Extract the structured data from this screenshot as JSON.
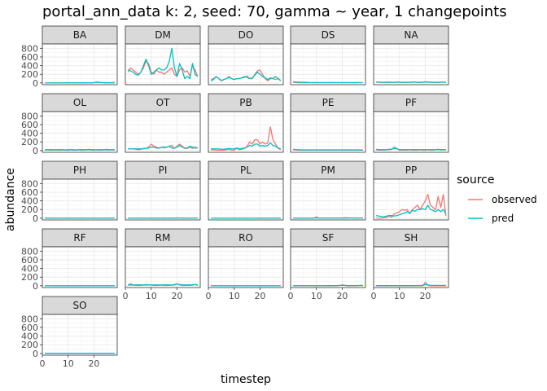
{
  "chart_data": {
    "type": "line",
    "title": "portal_ann_data k: 2, seed: 70, gamma ~ year, 1 changepoints",
    "xlabel": "timestep",
    "ylabel": "abundance",
    "xlim": [
      0,
      29
    ],
    "ylim": [
      -40,
      900
    ],
    "x_ticks": [
      0,
      10,
      20
    ],
    "y_ticks": [
      0,
      200,
      400,
      600,
      800
    ],
    "grid": true,
    "legend": {
      "title": "source",
      "position": "right",
      "entries": [
        {
          "label": "observed",
          "color": "#F8766D"
        },
        {
          "label": "pred",
          "color": "#00BFC4"
        }
      ]
    },
    "x": [
      1,
      2,
      3,
      4,
      5,
      6,
      7,
      8,
      9,
      10,
      11,
      12,
      13,
      14,
      15,
      16,
      17,
      18,
      19,
      20,
      21,
      22,
      23,
      24,
      25,
      26,
      27,
      28
    ],
    "panels": [
      {
        "name": "BA",
        "observed": [
          0,
          0,
          0,
          0,
          0,
          0,
          0,
          0,
          0,
          0,
          0,
          0,
          0,
          0,
          0,
          0,
          0,
          0,
          0,
          5,
          20,
          10,
          5,
          0,
          0,
          0,
          0,
          0
        ],
        "pred": [
          0,
          0,
          0,
          2,
          2,
          2,
          2,
          2,
          3,
          3,
          3,
          3,
          3,
          3,
          3,
          3,
          4,
          4,
          5,
          10,
          20,
          15,
          10,
          10,
          8,
          6,
          10,
          15
        ]
      },
      {
        "name": "DM",
        "observed": [
          250,
          350,
          300,
          250,
          200,
          250,
          350,
          500,
          450,
          250,
          200,
          300,
          250,
          250,
          200,
          250,
          300,
          350,
          200,
          150,
          300,
          350,
          250,
          280,
          150,
          400,
          300,
          150
        ],
        "pred": [
          300,
          280,
          250,
          200,
          180,
          250,
          400,
          550,
          400,
          200,
          250,
          300,
          350,
          300,
          300,
          350,
          500,
          800,
          350,
          150,
          450,
          300,
          100,
          150,
          100,
          450,
          200,
          150
        ]
      },
      {
        "name": "DO",
        "observed": [
          80,
          100,
          150,
          100,
          50,
          80,
          100,
          150,
          100,
          80,
          100,
          100,
          120,
          130,
          160,
          100,
          100,
          200,
          280,
          300,
          200,
          100,
          50,
          100,
          100,
          80,
          100,
          60
        ],
        "pred": [
          50,
          80,
          150,
          100,
          60,
          80,
          100,
          130,
          100,
          80,
          100,
          100,
          120,
          150,
          130,
          100,
          120,
          180,
          250,
          200,
          150,
          120,
          80,
          120,
          100,
          150,
          100,
          50
        ]
      },
      {
        "name": "DS",
        "observed": [
          20,
          10,
          5,
          5,
          5,
          5,
          5,
          5,
          5,
          5,
          5,
          5,
          5,
          5,
          5,
          5,
          5,
          5,
          5,
          5,
          5,
          5,
          5,
          5,
          5,
          5,
          5,
          5
        ],
        "pred": [
          30,
          20,
          20,
          15,
          15,
          15,
          10,
          10,
          10,
          10,
          10,
          10,
          10,
          10,
          10,
          10,
          10,
          10,
          10,
          10,
          10,
          10,
          10,
          10,
          10,
          10,
          10,
          10
        ]
      },
      {
        "name": "NA",
        "observed": [
          20,
          20,
          10,
          10,
          10,
          20,
          10,
          10,
          20,
          20,
          10,
          10,
          10,
          10,
          20,
          20,
          10,
          10,
          20,
          30,
          20,
          20,
          10,
          10,
          10,
          20,
          20,
          10
        ],
        "pred": [
          20,
          20,
          15,
          15,
          15,
          20,
          15,
          15,
          20,
          20,
          15,
          15,
          15,
          15,
          20,
          20,
          15,
          15,
          20,
          25,
          20,
          20,
          15,
          15,
          15,
          20,
          20,
          15
        ]
      },
      {
        "name": "OL",
        "observed": [
          10,
          20,
          10,
          10,
          20,
          10,
          10,
          20,
          10,
          10,
          20,
          10,
          10,
          20,
          10,
          10,
          20,
          30,
          10,
          10,
          20,
          10,
          10,
          20,
          30,
          10,
          20,
          10
        ],
        "pred": [
          20,
          20,
          20,
          20,
          15,
          20,
          20,
          20,
          15,
          20,
          20,
          20,
          15,
          20,
          20,
          20,
          15,
          20,
          20,
          20,
          15,
          20,
          20,
          20,
          15,
          20,
          20,
          20
        ]
      },
      {
        "name": "OT",
        "observed": [
          40,
          40,
          40,
          30,
          20,
          30,
          50,
          50,
          80,
          150,
          100,
          80,
          50,
          80,
          60,
          80,
          100,
          120,
          50,
          100,
          150,
          100,
          50,
          50,
          80,
          50,
          80,
          60
        ],
        "pred": [
          40,
          40,
          40,
          40,
          40,
          40,
          40,
          50,
          60,
          80,
          80,
          60,
          60,
          80,
          80,
          80,
          100,
          60,
          60,
          80,
          120,
          80,
          60,
          60,
          100,
          80,
          60,
          60
        ]
      },
      {
        "name": "PB",
        "observed": [
          20,
          20,
          10,
          10,
          10,
          10,
          20,
          30,
          10,
          10,
          50,
          20,
          30,
          50,
          100,
          200,
          150,
          250,
          250,
          150,
          200,
          150,
          180,
          550,
          250,
          150,
          50,
          20
        ],
        "pred": [
          40,
          40,
          40,
          40,
          30,
          30,
          40,
          50,
          40,
          40,
          60,
          40,
          50,
          60,
          80,
          120,
          100,
          150,
          150,
          100,
          120,
          100,
          120,
          180,
          120,
          100,
          60,
          40
        ]
      },
      {
        "name": "PE",
        "observed": [
          20,
          20,
          10,
          10,
          10,
          10,
          10,
          10,
          10,
          10,
          10,
          10,
          10,
          10,
          10,
          10,
          10,
          10,
          10,
          10,
          10,
          10,
          10,
          10,
          10,
          10,
          10,
          10
        ],
        "pred": [
          30,
          20,
          20,
          15,
          15,
          15,
          15,
          15,
          15,
          15,
          15,
          15,
          15,
          15,
          15,
          15,
          15,
          15,
          15,
          15,
          15,
          15,
          15,
          15,
          15,
          15,
          15,
          15
        ]
      },
      {
        "name": "PF",
        "observed": [
          20,
          10,
          10,
          10,
          20,
          20,
          30,
          80,
          50,
          10,
          10,
          10,
          10,
          20,
          10,
          10,
          10,
          20,
          10,
          10,
          20,
          10,
          10,
          20,
          30,
          10,
          20,
          10
        ],
        "pred": [
          30,
          20,
          20,
          20,
          20,
          30,
          30,
          50,
          40,
          20,
          20,
          20,
          20,
          20,
          20,
          20,
          20,
          20,
          20,
          20,
          20,
          20,
          20,
          20,
          25,
          20,
          20,
          20
        ]
      },
      {
        "name": "PH",
        "observed": [
          0,
          0,
          0,
          0,
          0,
          0,
          0,
          0,
          0,
          0,
          0,
          0,
          0,
          0,
          0,
          0,
          0,
          0,
          0,
          0,
          0,
          0,
          0,
          0,
          0,
          0,
          0,
          0
        ],
        "pred": [
          2,
          2,
          2,
          2,
          2,
          2,
          2,
          2,
          2,
          2,
          2,
          2,
          2,
          2,
          2,
          2,
          2,
          2,
          2,
          2,
          2,
          2,
          2,
          2,
          2,
          2,
          2,
          2
        ]
      },
      {
        "name": "PI",
        "observed": [
          0,
          0,
          0,
          0,
          0,
          0,
          0,
          0,
          0,
          0,
          0,
          0,
          0,
          0,
          0,
          0,
          0,
          0,
          0,
          10,
          0,
          0,
          0,
          0,
          0,
          0,
          0,
          0
        ],
        "pred": [
          2,
          2,
          2,
          2,
          2,
          2,
          2,
          2,
          2,
          2,
          2,
          2,
          2,
          2,
          2,
          2,
          2,
          2,
          2,
          5,
          5,
          2,
          2,
          2,
          2,
          2,
          2,
          2
        ]
      },
      {
        "name": "PL",
        "observed": [
          0,
          0,
          0,
          0,
          0,
          0,
          0,
          0,
          0,
          0,
          0,
          0,
          0,
          0,
          0,
          0,
          0,
          0,
          0,
          0,
          0,
          0,
          0,
          0,
          0,
          0,
          0,
          0
        ],
        "pred": [
          0,
          0,
          0,
          0,
          0,
          0,
          0,
          0,
          0,
          0,
          0,
          0,
          0,
          0,
          0,
          0,
          0,
          0,
          0,
          2,
          2,
          2,
          2,
          2,
          2,
          2,
          2,
          2
        ]
      },
      {
        "name": "PM",
        "observed": [
          0,
          0,
          0,
          0,
          0,
          0,
          0,
          0,
          0,
          30,
          0,
          0,
          0,
          0,
          0,
          0,
          0,
          0,
          0,
          0,
          0,
          0,
          10,
          0,
          0,
          0,
          0,
          0
        ],
        "pred": [
          2,
          2,
          2,
          2,
          2,
          2,
          2,
          2,
          5,
          10,
          5,
          5,
          5,
          5,
          5,
          5,
          5,
          5,
          5,
          5,
          10,
          10,
          5,
          5,
          5,
          5,
          5,
          5
        ]
      },
      {
        "name": "PP",
        "observed": [
          0,
          0,
          0,
          10,
          20,
          50,
          20,
          100,
          120,
          150,
          200,
          180,
          200,
          100,
          200,
          250,
          300,
          200,
          300,
          400,
          550,
          300,
          250,
          200,
          500,
          250,
          550,
          50
        ],
        "pred": [
          60,
          50,
          40,
          30,
          50,
          60,
          60,
          50,
          60,
          80,
          100,
          120,
          150,
          120,
          180,
          160,
          200,
          200,
          220,
          200,
          300,
          200,
          180,
          150,
          200,
          150,
          200,
          100
        ]
      },
      {
        "name": "RF",
        "observed": [
          0,
          0,
          0,
          0,
          0,
          0,
          0,
          0,
          0,
          0,
          0,
          0,
          0,
          0,
          0,
          0,
          0,
          0,
          0,
          0,
          0,
          0,
          0,
          0,
          0,
          0,
          0,
          0
        ],
        "pred": [
          0,
          0,
          0,
          0,
          0,
          0,
          0,
          0,
          0,
          0,
          0,
          0,
          0,
          0,
          0,
          0,
          0,
          0,
          0,
          0,
          0,
          0,
          0,
          0,
          0,
          0,
          0,
          0
        ]
      },
      {
        "name": "RM",
        "observed": [
          10,
          50,
          20,
          10,
          10,
          10,
          20,
          30,
          20,
          20,
          10,
          10,
          10,
          20,
          10,
          10,
          10,
          20,
          30,
          50,
          20,
          10,
          10,
          10,
          10,
          20,
          30,
          10
        ],
        "pred": [
          20,
          20,
          20,
          20,
          20,
          20,
          20,
          20,
          20,
          20,
          20,
          20,
          20,
          20,
          20,
          20,
          20,
          20,
          20,
          40,
          30,
          20,
          20,
          20,
          20,
          20,
          30,
          20
        ]
      },
      {
        "name": "RO",
        "observed": [
          0,
          0,
          0,
          0,
          0,
          0,
          0,
          0,
          0,
          0,
          0,
          0,
          0,
          0,
          0,
          0,
          0,
          0,
          0,
          0,
          0,
          0,
          0,
          0,
          0,
          0,
          0,
          0
        ],
        "pred": [
          0,
          0,
          0,
          0,
          0,
          0,
          0,
          0,
          0,
          0,
          0,
          0,
          0,
          0,
          0,
          0,
          0,
          0,
          0,
          0,
          0,
          0,
          0,
          0,
          0,
          0,
          0,
          0
        ]
      },
      {
        "name": "SF",
        "observed": [
          0,
          0,
          0,
          0,
          0,
          0,
          0,
          0,
          0,
          0,
          0,
          0,
          0,
          0,
          0,
          0,
          0,
          0,
          10,
          20,
          10,
          0,
          0,
          0,
          0,
          0,
          10,
          0
        ],
        "pred": [
          2,
          2,
          2,
          2,
          2,
          2,
          2,
          2,
          2,
          2,
          2,
          2,
          2,
          5,
          5,
          5,
          5,
          5,
          10,
          10,
          10,
          5,
          5,
          5,
          5,
          5,
          10,
          5
        ]
      },
      {
        "name": "SH",
        "observed": [
          0,
          0,
          0,
          0,
          0,
          0,
          0,
          0,
          0,
          0,
          0,
          0,
          0,
          0,
          0,
          0,
          0,
          0,
          0,
          80,
          20,
          0,
          0,
          0,
          0,
          0,
          0,
          0
        ],
        "pred": [
          5,
          5,
          5,
          5,
          5,
          5,
          5,
          5,
          5,
          5,
          5,
          5,
          5,
          5,
          5,
          5,
          5,
          5,
          10,
          30,
          20,
          10,
          10,
          10,
          10,
          10,
          10,
          10
        ]
      },
      {
        "name": "SO",
        "observed": [
          0,
          0,
          0,
          0,
          0,
          0,
          0,
          0,
          0,
          0,
          0,
          0,
          0,
          0,
          0,
          0,
          0,
          0,
          0,
          0,
          0,
          0,
          0,
          0,
          0,
          0,
          0,
          0
        ],
        "pred": [
          5,
          5,
          5,
          5,
          5,
          5,
          5,
          5,
          5,
          5,
          5,
          5,
          5,
          5,
          5,
          5,
          5,
          5,
          5,
          5,
          5,
          5,
          5,
          5,
          5,
          5,
          5,
          5
        ]
      }
    ]
  }
}
